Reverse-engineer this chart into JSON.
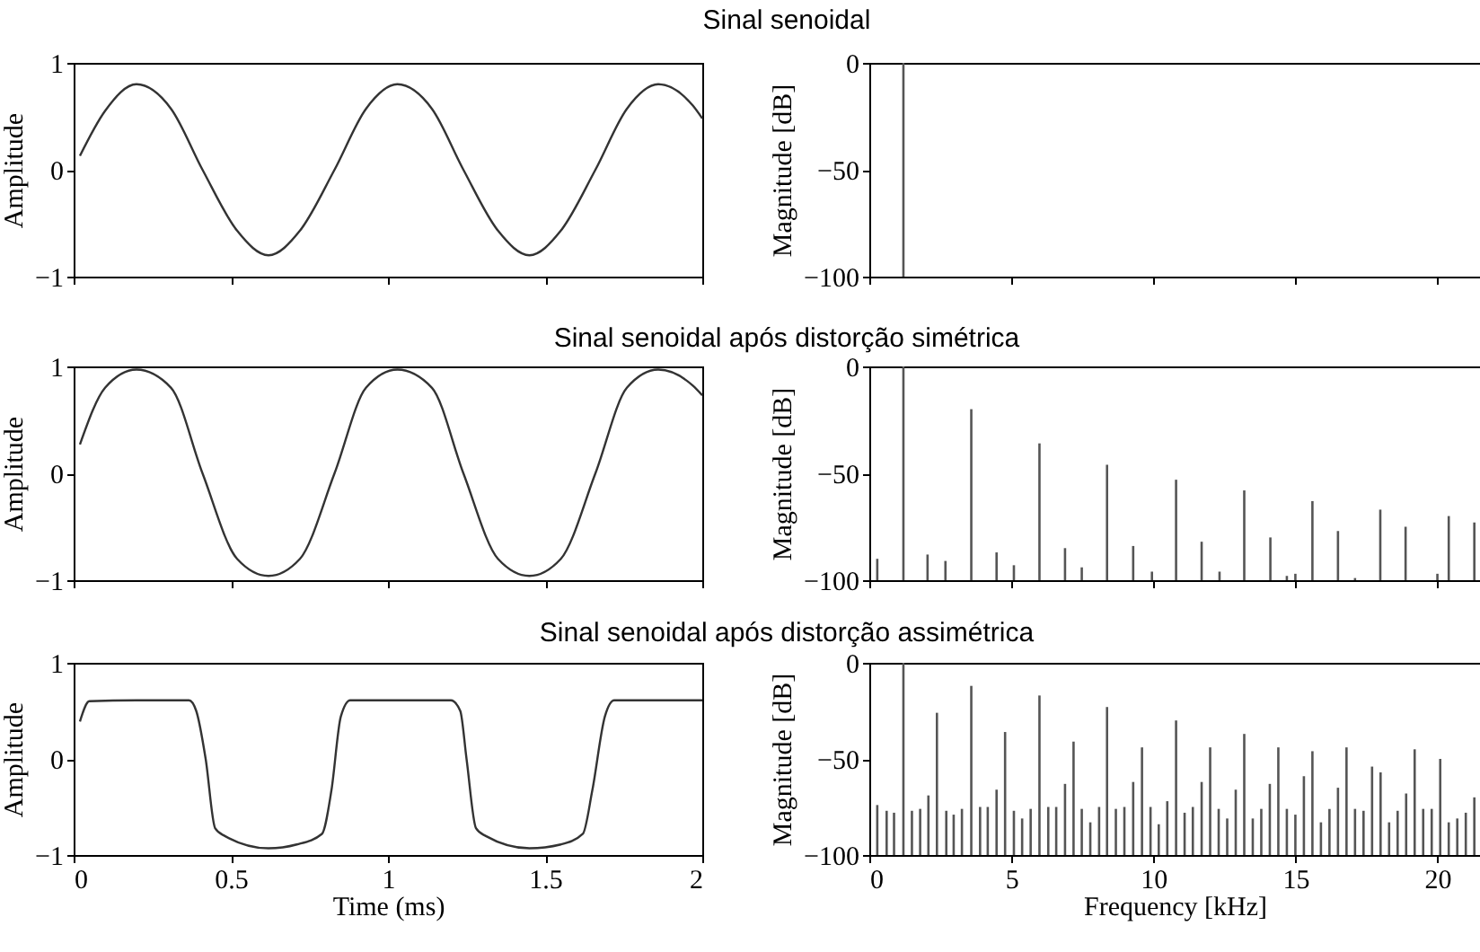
{
  "chart_data": [
    {
      "type": "line",
      "title": "Sinal senoidal",
      "ylabel": "Amplitude",
      "color": "#333333",
      "xlim": [
        0,
        2
      ],
      "ylim": [
        -1,
        1
      ],
      "xticks": [
        0,
        0.5,
        1,
        1.5,
        2
      ],
      "yticks": [
        -1,
        0,
        1
      ],
      "tick_labels": "y",
      "x": [
        0.02,
        0.1,
        0.2,
        0.31,
        0.41,
        0.52,
        0.62,
        0.72,
        0.83,
        0.93,
        1.03,
        1.14,
        1.24,
        1.35,
        1.45,
        1.55,
        1.66,
        1.76,
        1.86,
        1.97,
        2.0
      ],
      "values": [
        0.13,
        0.55,
        0.8,
        0.57,
        0,
        -0.57,
        -0.8,
        -0.57,
        0,
        0.57,
        0.8,
        0.57,
        0,
        -0.57,
        -0.8,
        -0.57,
        0,
        0.57,
        0.8,
        0.6,
        0.48
      ]
    },
    {
      "type": "bar",
      "ylabel": "Magnitude [dB]",
      "color": "#555555",
      "xlim": [
        0,
        21.5
      ],
      "ylim": [
        -100,
        0
      ],
      "xticks": [
        0,
        5,
        10,
        15,
        20
      ],
      "yticks": [
        -100,
        -50,
        0
      ],
      "tick_labels": "y",
      "x": [
        1.2
      ],
      "base": [
        -100
      ],
      "values": [
        100
      ]
    },
    {
      "type": "line",
      "title": "Sinal senoidal após distorção simétrica",
      "ylabel": "Amplitude",
      "color": "#333333",
      "xlim": [
        0,
        2
      ],
      "ylim": [
        -1,
        1
      ],
      "xticks": [
        0,
        0.5,
        1,
        1.5,
        2
      ],
      "yticks": [
        -1,
        0,
        1
      ],
      "tick_labels": "y",
      "x": [
        0.02,
        0.1,
        0.2,
        0.31,
        0.41,
        0.52,
        0.62,
        0.72,
        0.83,
        0.93,
        1.03,
        1.14,
        1.24,
        1.35,
        1.45,
        1.55,
        1.66,
        1.76,
        1.86,
        1.97,
        2.0
      ],
      "values": [
        0.27,
        0.8,
        0.97,
        0.8,
        0,
        -0.8,
        -0.96,
        -0.8,
        0,
        0.8,
        0.97,
        0.8,
        0,
        -0.8,
        -0.96,
        -0.8,
        0,
        0.8,
        0.97,
        0.82,
        0.73
      ]
    },
    {
      "type": "bar",
      "ylabel": "Magnitude [dB]",
      "color": "#555555",
      "xlim": [
        0,
        21.5
      ],
      "ylim": [
        -100,
        0
      ],
      "xticks": [
        0,
        5,
        10,
        15,
        20
      ],
      "yticks": [
        -100,
        -50,
        0
      ],
      "tick_labels": "y",
      "x": [
        0.28,
        1.2,
        2.05,
        2.68,
        3.59,
        4.48,
        5.09,
        5.99,
        6.89,
        7.48,
        8.37,
        9.29,
        9.95,
        10.8,
        11.7,
        12.33,
        13.2,
        14.12,
        14.7,
        15.0,
        15.6,
        16.5,
        17.1,
        17.99,
        18.88,
        20.0,
        20.4,
        21.3
      ],
      "base": [
        -100,
        -100,
        -100,
        -100,
        -100,
        -100,
        -100,
        -100,
        -100,
        -100,
        -100,
        -100,
        -100,
        -100,
        -100,
        -100,
        -100,
        -100,
        -100,
        -100,
        -100,
        -100,
        -100,
        -100,
        -100,
        -100,
        -100,
        -100
      ],
      "values": [
        10,
        100,
        12,
        9,
        80,
        13,
        7,
        64,
        15,
        6,
        54,
        16,
        4,
        47,
        18,
        4,
        42,
        20,
        2,
        3,
        37,
        23,
        1,
        33,
        25,
        3,
        30,
        27
      ]
    },
    {
      "type": "line",
      "title": "Sinal senoidal após distorção assimétrica",
      "xlabel": "Time (ms)",
      "ylabel": "Amplitude",
      "color": "#333333",
      "xlim": [
        0,
        2
      ],
      "ylim": [
        -1,
        1
      ],
      "xticks": [
        0,
        0.5,
        1,
        1.5,
        2
      ],
      "yticks": [
        -1,
        0,
        1
      ],
      "x": [
        0.02,
        0.05,
        0.2,
        0.367,
        0.39,
        0.42,
        0.45,
        0.48,
        0.62,
        0.71,
        0.79,
        0.82,
        0.85,
        0.88,
        1.04,
        1.2,
        1.23,
        1.25,
        1.28,
        1.31,
        1.45,
        1.55,
        1.62,
        1.65,
        1.69,
        1.72,
        2.0
      ],
      "values": [
        0.39,
        0.6,
        0.61,
        0.61,
        0.5,
        0,
        -0.72,
        -0.8,
        -0.93,
        -0.89,
        -0.78,
        -0.33,
        0.44,
        0.61,
        0.61,
        0.61,
        0.5,
        0,
        -0.72,
        -0.8,
        -0.93,
        -0.89,
        -0.78,
        -0.33,
        0.44,
        0.61,
        0.61
      ]
    },
    {
      "type": "bar",
      "xlabel": "Frequency [kHz]",
      "ylabel": "Magnitude [dB]",
      "color": "#555555",
      "xlim": [
        0,
        21.5
      ],
      "ylim": [
        -100,
        0
      ],
      "xticks": [
        0,
        5,
        10,
        15,
        20
      ],
      "yticks": [
        -100,
        -50,
        0
      ],
      "x": [
        0.28,
        0.61,
        0.87,
        1.2,
        1.5,
        1.79,
        2.08,
        2.38,
        2.71,
        2.97,
        3.26,
        3.59,
        3.9,
        4.17,
        4.48,
        4.78,
        5.09,
        5.38,
        5.68,
        5.99,
        6.3,
        6.58,
        6.89,
        7.19,
        7.48,
        7.78,
        8.09,
        8.37,
        8.68,
        8.98,
        9.29,
        9.6,
        9.9,
        10.19,
        10.49,
        10.8,
        11.1,
        11.39,
        11.7,
        12.0,
        12.3,
        12.6,
        12.9,
        13.2,
        13.5,
        13.8,
        14.1,
        14.4,
        14.7,
        15.0,
        15.3,
        15.6,
        15.9,
        16.2,
        16.5,
        16.8,
        17.1,
        17.4,
        17.7,
        18.0,
        18.3,
        18.6,
        18.9,
        19.2,
        19.5,
        19.8,
        20.1,
        20.4,
        20.7,
        21.0,
        21.3
      ],
      "base": [
        -100,
        -100,
        -100,
        -100,
        -100,
        -100,
        -100,
        -100,
        -100,
        -100,
        -100,
        -100,
        -100,
        -100,
        -100,
        -100,
        -100,
        -100,
        -100,
        -100,
        -100,
        -100,
        -100,
        -100,
        -100,
        -100,
        -100,
        -100,
        -100,
        -100,
        -100,
        -100,
        -100,
        -100,
        -100,
        -100,
        -100,
        -100,
        -100,
        -100,
        -100,
        -100,
        -100,
        -100,
        -100,
        -100,
        -100,
        -100,
        -100,
        -100,
        -100,
        -100,
        -100,
        -100,
        -100,
        -100,
        -100,
        -100,
        -100,
        -100,
        -100,
        -100,
        -100,
        -100,
        -100,
        -100,
        -100,
        -100,
        -100,
        -100,
        -100
      ],
      "values": [
        26,
        23,
        22,
        100,
        23,
        24,
        31,
        74,
        23,
        21,
        24,
        88,
        25,
        25,
        34,
        64,
        23,
        19,
        24,
        83,
        25,
        25,
        37,
        59,
        24,
        17,
        25,
        77,
        24,
        25,
        38,
        56,
        25,
        16,
        28,
        70,
        22,
        25,
        38,
        56,
        24,
        19,
        34,
        63,
        19,
        24,
        37,
        56,
        24,
        21,
        41,
        54,
        17,
        24,
        35,
        56,
        24,
        23,
        46,
        43,
        17,
        23,
        32,
        55,
        24,
        24,
        50,
        17,
        19,
        22,
        30
      ]
    }
  ]
}
